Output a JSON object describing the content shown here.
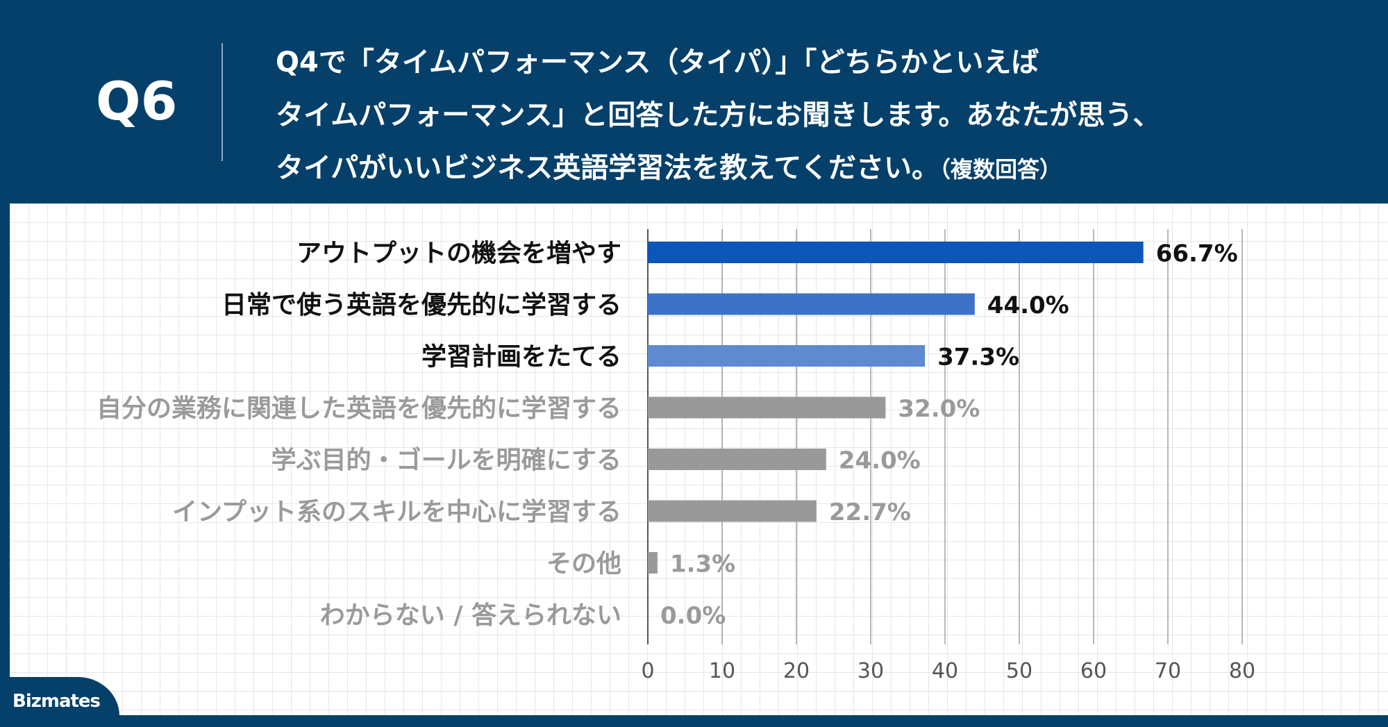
{
  "header": {
    "qnum": "Q6",
    "question_lines": [
      "Q4で「タイムパフォーマンス（タイパ）」「どちらかといえば",
      "タイムパフォーマンス」と回答した方にお聞きします。あなたが思う、",
      "タイパがいいビジネス英語学習法を教えてください。"
    ],
    "question_note": "（複数回答）"
  },
  "brand": {
    "logo": "Bizmates"
  },
  "chart_data": {
    "type": "bar",
    "orientation": "horizontal",
    "categories": [
      "アウトプットの機会を増やす",
      "日常で使う英語を優先的に学習する",
      "学習計画をたてる",
      "自分の業務に関連した英語を優先的に学習する",
      "学ぶ目的・ゴールを明確にする",
      "インプット系のスキルを中心に学習する",
      "その他",
      "わからない / 答えられない"
    ],
    "values": [
      66.7,
      44.0,
      37.3,
      32.0,
      24.0,
      22.7,
      1.3,
      0.0
    ],
    "value_labels": [
      "66.7%",
      "44.0%",
      "37.3%",
      "32.0%",
      "24.0%",
      "22.7%",
      "1.3%",
      "0.0%"
    ],
    "bar_colors": [
      "#0b56b8",
      "#3c72c8",
      "#5f8ad0",
      "#999999",
      "#999999",
      "#999999",
      "#999999",
      "#999999"
    ],
    "label_colors": [
      "#111111",
      "#111111",
      "#111111",
      "#9a9a9a",
      "#9a9a9a",
      "#9a9a9a",
      "#9a9a9a",
      "#9a9a9a"
    ],
    "xlim": [
      0,
      80
    ],
    "xticks": [
      0,
      10,
      20,
      30,
      40,
      50,
      60,
      70,
      80
    ],
    "grid": true,
    "title": "",
    "xlabel": "",
    "ylabel": ""
  }
}
